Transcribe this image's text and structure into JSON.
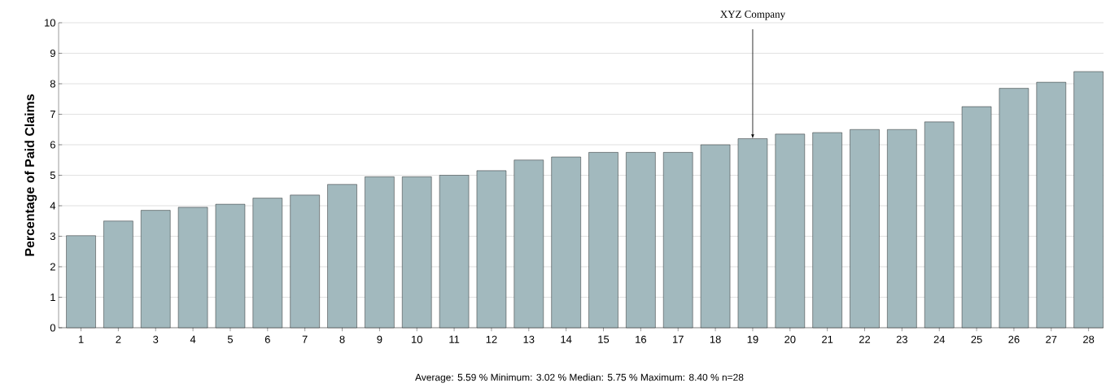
{
  "chart_data": {
    "type": "bar",
    "ylabel": "Percentage of Paid Claims",
    "categories": [
      "1",
      "2",
      "3",
      "4",
      "5",
      "6",
      "7",
      "8",
      "9",
      "10",
      "11",
      "12",
      "13",
      "14",
      "15",
      "16",
      "17",
      "18",
      "19",
      "20",
      "21",
      "22",
      "23",
      "24",
      "25",
      "26",
      "27",
      "28"
    ],
    "values": [
      3.02,
      3.5,
      3.85,
      3.95,
      4.05,
      4.25,
      4.35,
      4.7,
      4.95,
      4.95,
      5.0,
      5.15,
      5.5,
      5.6,
      5.75,
      5.75,
      5.75,
      6.0,
      6.2,
      6.35,
      6.4,
      6.5,
      6.5,
      6.75,
      7.25,
      7.85,
      8.05,
      8.4
    ],
    "color": "#a2b9be",
    "ylim": [
      0,
      10
    ],
    "yticks": [
      0,
      1,
      2,
      3,
      4,
      5,
      6,
      7,
      8,
      9,
      10
    ],
    "grid": "y",
    "annotations": [
      {
        "text": "XYZ Company",
        "x": "19",
        "y": 6.2
      },
      "Average: 5.59 %  Minimum: 3.02 %  Median: 5.75 % Maximum: 8.40 %  n=28"
    ]
  }
}
